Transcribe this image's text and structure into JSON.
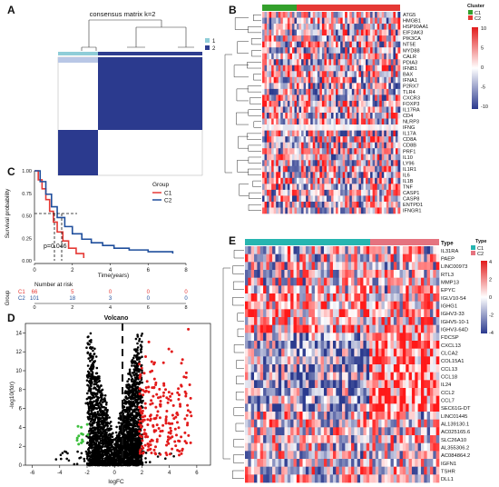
{
  "panels": {
    "A": {
      "letter": "A",
      "title": "consensus matrix k=2",
      "legend": [
        "1",
        "2"
      ],
      "colors": {
        "cluster1": "#8fcdd8",
        "cluster2": "#2e3d8f",
        "matrix_dark": "#2b3a8e",
        "matrix_light": "#ffffff"
      }
    },
    "B": {
      "letter": "B",
      "legend_title": "Cluster",
      "legend_items": [
        "C1",
        "C2"
      ],
      "legend_colors": [
        "#33a02c",
        "#e53935"
      ],
      "colorbar_ticks": [
        "10",
        "5",
        "0",
        "-5",
        "-10"
      ],
      "genes": [
        "ATG5",
        "HMGB1",
        "HSP90AA1",
        "EIF2AK3",
        "PIK3CA",
        "NT5E",
        "MYD88",
        "CALR",
        "PDIA3",
        "IFNB1",
        "BAX",
        "IFNA1",
        "P2RX7",
        "TLR4",
        "CXCR3",
        "FOXP3",
        "IL17RA",
        "CD4",
        "NLRP3",
        "IFNG",
        "IL17A",
        "CD8A",
        "CD8B",
        "PRF1",
        "IL10",
        "LY96",
        "IL1R1",
        "IL6",
        "IL1B",
        "TNF",
        "CASP1",
        "CASP8",
        "ENTPD1",
        "IFNGR1"
      ]
    },
    "C": {
      "letter": "C",
      "ylabel": "Survival probability",
      "xlabel": "Time(years)",
      "legend_title": "Group",
      "legend_items": [
        "C1",
        "C2"
      ],
      "legend_colors": [
        "#e53935",
        "#1f4e9c"
      ],
      "pvalue": "p=0.046",
      "y_ticks": [
        "1.00",
        "0.75",
        "0.50",
        "0.25",
        "0.00"
      ],
      "x_ticks": [
        "0",
        "2",
        "4",
        "6",
        "8"
      ],
      "risk_title": "Number at risk",
      "risk_ylabel": "Group",
      "risk_rows": [
        {
          "label": "C1",
          "values": [
            "66",
            "5",
            "0",
            "0",
            "0"
          ]
        },
        {
          "label": "C2",
          "values": [
            "101",
            "18",
            "3",
            "0",
            "0"
          ]
        }
      ]
    },
    "D": {
      "letter": "D",
      "title": "Volcano",
      "xlabel": "logFC",
      "ylabel": "-log10(fdr)",
      "x_ticks": [
        "-6",
        "-4",
        "-2",
        "0",
        "2",
        "4",
        "6"
      ],
      "y_ticks": [
        "0",
        "2",
        "4",
        "6",
        "8",
        "10",
        "12",
        "14"
      ]
    },
    "E": {
      "letter": "E",
      "legend_title": "Type",
      "legend_items": [
        "C1",
        "C2"
      ],
      "legend_colors": [
        "#26b5b0",
        "#e5737f"
      ],
      "type_label": "Type",
      "colorbar_ticks": [
        "4",
        "2",
        "0",
        "-2",
        "-4"
      ],
      "genes": [
        "IL31RA",
        "PAEP",
        "LINC00973",
        "RTL3",
        "MMP13",
        "EPYC",
        "IGLV10-54",
        "IGHG1",
        "IGHV3-33",
        "IGHV5-10-1",
        "IGHV3-64D",
        "FDCSP",
        "CXCL13",
        "CLCA2",
        "COL15A1",
        "CCL13",
        "CCL18",
        "IL24",
        "CCL2",
        "CCL7",
        "SEC61G-DT",
        "LINC01445",
        "AL139130.1",
        "AC025165.6",
        "SLC26A10",
        "AL355306.2",
        "AC084864.2",
        "IGFN1",
        "TSHR",
        "DLL1"
      ]
    }
  },
  "chart_data": [
    {
      "type": "line",
      "title": "",
      "xlabel": "Time(years)",
      "ylabel": "Survival probability",
      "xlim": [
        0,
        8
      ],
      "ylim": [
        0,
        1
      ],
      "series": [
        {
          "name": "C1",
          "x": [
            0,
            0.2,
            0.4,
            0.6,
            0.8,
            1.0,
            1.2,
            1.5,
            1.8,
            2.2,
            2.6
          ],
          "y": [
            1.0,
            0.9,
            0.8,
            0.68,
            0.55,
            0.43,
            0.32,
            0.22,
            0.14,
            0.08,
            0.03
          ]
        },
        {
          "name": "C2",
          "x": [
            0,
            0.3,
            0.6,
            0.9,
            1.2,
            1.6,
            2.0,
            2.5,
            3.0,
            3.6,
            4.2,
            5.0,
            6.0,
            7.3
          ],
          "y": [
            1.0,
            0.88,
            0.74,
            0.6,
            0.48,
            0.38,
            0.3,
            0.24,
            0.2,
            0.17,
            0.14,
            0.12,
            0.1,
            0.08
          ]
        }
      ]
    },
    {
      "type": "scatter",
      "title": "Volcano",
      "xlabel": "logFC",
      "ylabel": "-log10(fdr)",
      "xlim": [
        -6.5,
        7
      ],
      "ylim": [
        0,
        15
      ]
    }
  ]
}
